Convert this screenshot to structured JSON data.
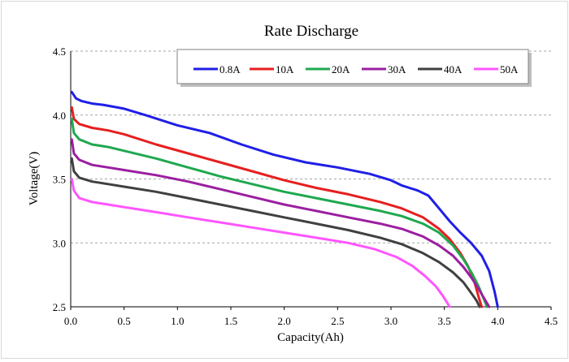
{
  "chart_data": {
    "type": "line",
    "title": "Rate Discharge",
    "xlabel": "Capacity(Ah)",
    "ylabel": "Voltage(V)",
    "xlim": [
      0.0,
      4.5
    ],
    "ylim": [
      2.5,
      4.5
    ],
    "x_ticks": [
      "0.0",
      "0.5",
      "1.0",
      "1.5",
      "2.0",
      "2.5",
      "3.0",
      "3.5",
      "4.0",
      "4.5"
    ],
    "y_ticks": [
      "2.5",
      "3.0",
      "3.5",
      "4.0",
      "4.5"
    ],
    "grid": "horizontal dashed",
    "legend_position": "top-right",
    "series": [
      {
        "name": "0.8A",
        "color": "#1f1fe6",
        "points": [
          [
            0.01,
            4.18
          ],
          [
            0.05,
            4.13
          ],
          [
            0.1,
            4.11
          ],
          [
            0.2,
            4.09
          ],
          [
            0.3,
            4.08
          ],
          [
            0.5,
            4.05
          ],
          [
            0.7,
            4.0
          ],
          [
            1.0,
            3.92
          ],
          [
            1.3,
            3.86
          ],
          [
            1.6,
            3.77
          ],
          [
            1.9,
            3.69
          ],
          [
            2.2,
            3.63
          ],
          [
            2.5,
            3.59
          ],
          [
            2.8,
            3.54
          ],
          [
            3.0,
            3.49
          ],
          [
            3.1,
            3.45
          ],
          [
            3.25,
            3.41
          ],
          [
            3.35,
            3.37
          ],
          [
            3.45,
            3.27
          ],
          [
            3.55,
            3.17
          ],
          [
            3.65,
            3.08
          ],
          [
            3.75,
            3.0
          ],
          [
            3.85,
            2.9
          ],
          [
            3.92,
            2.78
          ],
          [
            3.97,
            2.62
          ],
          [
            4.0,
            2.5
          ]
        ]
      },
      {
        "name": "10A",
        "color": "#e61f1f",
        "points": [
          [
            0.01,
            4.06
          ],
          [
            0.03,
            3.97
          ],
          [
            0.08,
            3.93
          ],
          [
            0.2,
            3.9
          ],
          [
            0.35,
            3.88
          ],
          [
            0.5,
            3.85
          ],
          [
            0.8,
            3.77
          ],
          [
            1.1,
            3.7
          ],
          [
            1.4,
            3.63
          ],
          [
            1.7,
            3.56
          ],
          [
            2.0,
            3.49
          ],
          [
            2.3,
            3.43
          ],
          [
            2.6,
            3.38
          ],
          [
            2.9,
            3.32
          ],
          [
            3.1,
            3.27
          ],
          [
            3.3,
            3.2
          ],
          [
            3.45,
            3.11
          ],
          [
            3.55,
            3.03
          ],
          [
            3.65,
            2.92
          ],
          [
            3.72,
            2.82
          ],
          [
            3.78,
            2.7
          ],
          [
            3.82,
            2.58
          ],
          [
            3.85,
            2.5
          ]
        ]
      },
      {
        "name": "20A",
        "color": "#1fa84f",
        "points": [
          [
            0.01,
            3.97
          ],
          [
            0.03,
            3.86
          ],
          [
            0.08,
            3.81
          ],
          [
            0.2,
            3.77
          ],
          [
            0.35,
            3.75
          ],
          [
            0.5,
            3.72
          ],
          [
            0.8,
            3.66
          ],
          [
            1.1,
            3.59
          ],
          [
            1.4,
            3.52
          ],
          [
            1.7,
            3.46
          ],
          [
            2.0,
            3.4
          ],
          [
            2.3,
            3.35
          ],
          [
            2.6,
            3.3
          ],
          [
            2.9,
            3.25
          ],
          [
            3.1,
            3.21
          ],
          [
            3.3,
            3.15
          ],
          [
            3.45,
            3.08
          ],
          [
            3.58,
            2.98
          ],
          [
            3.68,
            2.87
          ],
          [
            3.76,
            2.76
          ],
          [
            3.82,
            2.66
          ],
          [
            3.87,
            2.56
          ],
          [
            3.9,
            2.5
          ]
        ]
      },
      {
        "name": "30A",
        "color": "#9b1fa0",
        "points": [
          [
            0.01,
            3.81
          ],
          [
            0.03,
            3.7
          ],
          [
            0.08,
            3.65
          ],
          [
            0.2,
            3.61
          ],
          [
            0.35,
            3.59
          ],
          [
            0.5,
            3.57
          ],
          [
            0.8,
            3.53
          ],
          [
            1.1,
            3.48
          ],
          [
            1.4,
            3.42
          ],
          [
            1.7,
            3.36
          ],
          [
            2.0,
            3.3
          ],
          [
            2.3,
            3.25
          ],
          [
            2.6,
            3.2
          ],
          [
            2.9,
            3.15
          ],
          [
            3.1,
            3.11
          ],
          [
            3.3,
            3.05
          ],
          [
            3.45,
            2.98
          ],
          [
            3.58,
            2.9
          ],
          [
            3.68,
            2.81
          ],
          [
            3.76,
            2.72
          ],
          [
            3.82,
            2.64
          ],
          [
            3.87,
            2.57
          ],
          [
            3.92,
            2.5
          ]
        ]
      },
      {
        "name": "40A",
        "color": "#404040",
        "points": [
          [
            0.01,
            3.66
          ],
          [
            0.03,
            3.56
          ],
          [
            0.08,
            3.51
          ],
          [
            0.2,
            3.48
          ],
          [
            0.35,
            3.46
          ],
          [
            0.5,
            3.44
          ],
          [
            0.8,
            3.4
          ],
          [
            1.1,
            3.35
          ],
          [
            1.4,
            3.3
          ],
          [
            1.7,
            3.25
          ],
          [
            2.0,
            3.2
          ],
          [
            2.3,
            3.15
          ],
          [
            2.6,
            3.1
          ],
          [
            2.9,
            3.04
          ],
          [
            3.1,
            2.99
          ],
          [
            3.3,
            2.92
          ],
          [
            3.45,
            2.85
          ],
          [
            3.58,
            2.77
          ],
          [
            3.68,
            2.69
          ],
          [
            3.75,
            2.61
          ],
          [
            3.8,
            2.55
          ],
          [
            3.83,
            2.5
          ]
        ]
      },
      {
        "name": "50A",
        "color": "#ff55ff",
        "points": [
          [
            0.01,
            3.5
          ],
          [
            0.03,
            3.41
          ],
          [
            0.08,
            3.35
          ],
          [
            0.2,
            3.32
          ],
          [
            0.35,
            3.3
          ],
          [
            0.5,
            3.28
          ],
          [
            0.8,
            3.24
          ],
          [
            1.1,
            3.2
          ],
          [
            1.4,
            3.16
          ],
          [
            1.7,
            3.12
          ],
          [
            2.0,
            3.08
          ],
          [
            2.3,
            3.04
          ],
          [
            2.6,
            3.0
          ],
          [
            2.85,
            2.95
          ],
          [
            3.05,
            2.89
          ],
          [
            3.2,
            2.82
          ],
          [
            3.32,
            2.74
          ],
          [
            3.42,
            2.66
          ],
          [
            3.49,
            2.58
          ],
          [
            3.55,
            2.5
          ]
        ]
      }
    ]
  }
}
